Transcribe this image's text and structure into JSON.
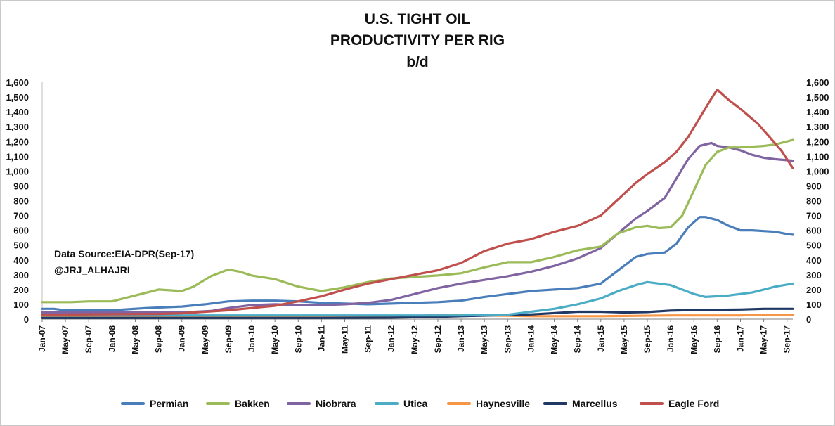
{
  "chart_data": {
    "type": "line",
    "title_lines": [
      "U.S. TIGHT OIL",
      "PRODUCTIVITY PER RIG",
      "b/d"
    ],
    "source_note": "Data Source:EIA-DPR(Sep-17)",
    "handle_note": "@JRJ_ALHAJRI",
    "ylim": [
      0,
      1600
    ],
    "yticks": [
      "0",
      "100",
      "200",
      "300",
      "400",
      "500",
      "600",
      "700",
      "800",
      "900",
      "1,000",
      "1,100",
      "1,200",
      "1,300",
      "1,400",
      "1,500",
      "1,600"
    ],
    "secondary_yticks": [
      "0",
      "100",
      "200",
      "300",
      "400",
      "500",
      "600",
      "700",
      "800",
      "900",
      "1,000",
      "1,100",
      "1,200",
      "1,300",
      "1,400",
      "1,500",
      "1,600"
    ],
    "x_start": "2007-01",
    "xticks": [
      "Jan-07",
      "May-07",
      "Sep-07",
      "Jan-08",
      "May-08",
      "Sep-08",
      "Jan-09",
      "May-09",
      "Sep-09",
      "Jan-10",
      "May-10",
      "Sep-10",
      "Jan-11",
      "May-11",
      "Sep-11",
      "Jan-12",
      "May-12",
      "Sep-12",
      "Jan-13",
      "May-13",
      "Sep-13",
      "Jan-14",
      "May-14",
      "Sep-14",
      "Jan-15",
      "May-15",
      "Sep-15",
      "Jan-16",
      "May-16",
      "Sep-16",
      "Jan-17",
      "May-17",
      "Sep-17"
    ],
    "grid": false,
    "legend_position": "bottom",
    "series": [
      {
        "name": "Permian",
        "color": "#4a7ebb",
        "points": [
          [
            "Jan-07",
            70
          ],
          [
            "Mar-07",
            70
          ],
          [
            "May-07",
            60
          ],
          [
            "Sep-07",
            60
          ],
          [
            "Jan-08",
            60
          ],
          [
            "Jul-08",
            75
          ],
          [
            "Jan-09",
            85
          ],
          [
            "May-09",
            100
          ],
          [
            "Sep-09",
            120
          ],
          [
            "Jan-10",
            125
          ],
          [
            "May-10",
            125
          ],
          [
            "Sep-10",
            120
          ],
          [
            "Jan-11",
            110
          ],
          [
            "May-11",
            105
          ],
          [
            "Sep-11",
            100
          ],
          [
            "Jan-12",
            105
          ],
          [
            "May-12",
            110
          ],
          [
            "Sep-12",
            115
          ],
          [
            "Jan-13",
            125
          ],
          [
            "May-13",
            150
          ],
          [
            "Sep-13",
            170
          ],
          [
            "Jan-14",
            190
          ],
          [
            "May-14",
            200
          ],
          [
            "Sep-14",
            210
          ],
          [
            "Jan-15",
            240
          ],
          [
            "Apr-15",
            330
          ],
          [
            "Jul-15",
            420
          ],
          [
            "Sep-15",
            440
          ],
          [
            "Dec-15",
            450
          ],
          [
            "Feb-16",
            510
          ],
          [
            "Apr-16",
            620
          ],
          [
            "Jun-16",
            690
          ],
          [
            "Jul-16",
            690
          ],
          [
            "Sep-16",
            670
          ],
          [
            "Nov-16",
            630
          ],
          [
            "Jan-17",
            600
          ],
          [
            "Mar-17",
            600
          ],
          [
            "May-17",
            595
          ],
          [
            "Jul-17",
            590
          ],
          [
            "Sep-17",
            575
          ],
          [
            "Oct-17",
            570
          ]
        ]
      },
      {
        "name": "Bakken",
        "color": "#9bbb59",
        "points": [
          [
            "Jan-07",
            115
          ],
          [
            "Jun-07",
            115
          ],
          [
            "Sep-07",
            120
          ],
          [
            "Jan-08",
            120
          ],
          [
            "May-08",
            160
          ],
          [
            "Sep-08",
            200
          ],
          [
            "Jan-09",
            190
          ],
          [
            "Mar-09",
            220
          ],
          [
            "Jun-09",
            290
          ],
          [
            "Sep-09",
            335
          ],
          [
            "Nov-09",
            320
          ],
          [
            "Jan-10",
            295
          ],
          [
            "May-10",
            270
          ],
          [
            "Sep-10",
            220
          ],
          [
            "Jan-11",
            190
          ],
          [
            "May-11",
            215
          ],
          [
            "Sep-11",
            250
          ],
          [
            "Jan-12",
            275
          ],
          [
            "May-12",
            285
          ],
          [
            "Sep-12",
            295
          ],
          [
            "Jan-13",
            310
          ],
          [
            "May-13",
            350
          ],
          [
            "Sep-13",
            385
          ],
          [
            "Jan-14",
            385
          ],
          [
            "May-14",
            420
          ],
          [
            "Sep-14",
            465
          ],
          [
            "Jan-15",
            490
          ],
          [
            "Apr-15",
            580
          ],
          [
            "Jul-15",
            620
          ],
          [
            "Sep-15",
            630
          ],
          [
            "Nov-15",
            615
          ],
          [
            "Jan-16",
            620
          ],
          [
            "Mar-16",
            700
          ],
          [
            "May-16",
            870
          ],
          [
            "Jul-16",
            1040
          ],
          [
            "Sep-16",
            1130
          ],
          [
            "Nov-16",
            1160
          ],
          [
            "Jan-17",
            1160
          ],
          [
            "Mar-17",
            1165
          ],
          [
            "May-17",
            1170
          ],
          [
            "Jul-17",
            1180
          ],
          [
            "Oct-17",
            1210
          ]
        ]
      },
      {
        "name": "Niobrara",
        "color": "#8064a2",
        "points": [
          [
            "Jan-07",
            45
          ],
          [
            "Sep-07",
            45
          ],
          [
            "Jan-08",
            45
          ],
          [
            "Sep-08",
            45
          ],
          [
            "Jan-09",
            45
          ],
          [
            "Jun-09",
            55
          ],
          [
            "Sep-09",
            75
          ],
          [
            "Jan-10",
            95
          ],
          [
            "May-10",
            100
          ],
          [
            "Sep-10",
            95
          ],
          [
            "Jan-11",
            95
          ],
          [
            "May-11",
            100
          ],
          [
            "Sep-11",
            110
          ],
          [
            "Jan-12",
            130
          ],
          [
            "May-12",
            170
          ],
          [
            "Sep-12",
            210
          ],
          [
            "Jan-13",
            240
          ],
          [
            "May-13",
            265
          ],
          [
            "Sep-13",
            290
          ],
          [
            "Jan-14",
            320
          ],
          [
            "May-14",
            360
          ],
          [
            "Sep-14",
            410
          ],
          [
            "Jan-15",
            480
          ],
          [
            "Apr-15",
            580
          ],
          [
            "Jul-15",
            680
          ],
          [
            "Sep-15",
            730
          ],
          [
            "Dec-15",
            820
          ],
          [
            "Feb-16",
            950
          ],
          [
            "Apr-16",
            1080
          ],
          [
            "Jun-16",
            1170
          ],
          [
            "Aug-16",
            1190
          ],
          [
            "Sep-16",
            1170
          ],
          [
            "Nov-16",
            1160
          ],
          [
            "Jan-17",
            1140
          ],
          [
            "Mar-17",
            1110
          ],
          [
            "May-17",
            1090
          ],
          [
            "Jul-17",
            1080
          ],
          [
            "Oct-17",
            1070
          ]
        ]
      },
      {
        "name": "Utica",
        "color": "#4bacc6",
        "points": [
          [
            "Jan-07",
            25
          ],
          [
            "Jan-10",
            25
          ],
          [
            "Jan-13",
            25
          ],
          [
            "Sep-13",
            30
          ],
          [
            "Jan-14",
            50
          ],
          [
            "May-14",
            70
          ],
          [
            "Sep-14",
            100
          ],
          [
            "Jan-15",
            140
          ],
          [
            "Apr-15",
            190
          ],
          [
            "Jul-15",
            230
          ],
          [
            "Sep-15",
            250
          ],
          [
            "Nov-15",
            240
          ],
          [
            "Jan-16",
            230
          ],
          [
            "Mar-16",
            200
          ],
          [
            "May-16",
            170
          ],
          [
            "Jul-16",
            150
          ],
          [
            "Sep-16",
            155
          ],
          [
            "Nov-16",
            160
          ],
          [
            "Jan-17",
            170
          ],
          [
            "Mar-17",
            180
          ],
          [
            "May-17",
            200
          ],
          [
            "Jul-17",
            220
          ],
          [
            "Oct-17",
            240
          ]
        ]
      },
      {
        "name": "Haynesville",
        "color": "#f79646",
        "points": [
          [
            "Jan-07",
            18
          ],
          [
            "Jan-10",
            18
          ],
          [
            "Jan-11",
            18
          ],
          [
            "May-12",
            20
          ],
          [
            "Sep-12",
            30
          ],
          [
            "Jan-13",
            30
          ],
          [
            "May-13",
            25
          ],
          [
            "Jan-14",
            20
          ],
          [
            "Jan-15",
            20
          ],
          [
            "Jan-16",
            25
          ],
          [
            "Jan-17",
            25
          ],
          [
            "May-17",
            30
          ],
          [
            "Oct-17",
            30
          ]
        ]
      },
      {
        "name": "Marcellus",
        "color": "#1f3864",
        "points": [
          [
            "Jan-07",
            8
          ],
          [
            "Jan-09",
            8
          ],
          [
            "Jan-11",
            8
          ],
          [
            "Jan-12",
            10
          ],
          [
            "Sep-12",
            15
          ],
          [
            "Jan-13",
            20
          ],
          [
            "Sep-13",
            28
          ],
          [
            "Jan-14",
            32
          ],
          [
            "Sep-14",
            50
          ],
          [
            "Jan-15",
            50
          ],
          [
            "May-15",
            45
          ],
          [
            "Sep-15",
            48
          ],
          [
            "Jan-16",
            58
          ],
          [
            "Jun-16",
            62
          ],
          [
            "Jan-17",
            65
          ],
          [
            "May-17",
            70
          ],
          [
            "Oct-17",
            70
          ]
        ]
      },
      {
        "name": "Eagle Ford",
        "color": "#c0504d",
        "points": [
          [
            "Jan-07",
            30
          ],
          [
            "Sep-08",
            35
          ],
          [
            "Jan-09",
            40
          ],
          [
            "Sep-09",
            60
          ],
          [
            "Jan-10",
            75
          ],
          [
            "May-10",
            90
          ],
          [
            "Sep-10",
            120
          ],
          [
            "Jan-11",
            155
          ],
          [
            "May-11",
            200
          ],
          [
            "Sep-11",
            240
          ],
          [
            "Jan-12",
            270
          ],
          [
            "May-12",
            300
          ],
          [
            "Sep-12",
            330
          ],
          [
            "Jan-13",
            380
          ],
          [
            "May-13",
            460
          ],
          [
            "Sep-13",
            510
          ],
          [
            "Jan-14",
            540
          ],
          [
            "May-14",
            590
          ],
          [
            "Sep-14",
            630
          ],
          [
            "Jan-15",
            700
          ],
          [
            "Apr-15",
            810
          ],
          [
            "Jul-15",
            920
          ],
          [
            "Sep-15",
            980
          ],
          [
            "Dec-15",
            1060
          ],
          [
            "Feb-16",
            1130
          ],
          [
            "Apr-16",
            1230
          ],
          [
            "Jun-16",
            1360
          ],
          [
            "Aug-16",
            1490
          ],
          [
            "Sep-16",
            1550
          ],
          [
            "Nov-16",
            1480
          ],
          [
            "Jan-17",
            1420
          ],
          [
            "Apr-17",
            1320
          ],
          [
            "Jun-17",
            1230
          ],
          [
            "Aug-17",
            1140
          ],
          [
            "Oct-17",
            1020
          ]
        ]
      }
    ]
  }
}
